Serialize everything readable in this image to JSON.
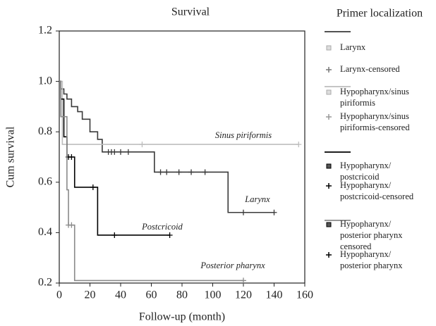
{
  "chart_data": {
    "type": "survival",
    "title": "Survival",
    "legend_title": "Primer localization",
    "x_label": "Follow-up (month)",
    "y_label": "Cum survival",
    "xlim": [
      0,
      160
    ],
    "ylim": [
      0.2,
      1.2
    ],
    "xticks": [
      0,
      20,
      40,
      60,
      80,
      100,
      120,
      140,
      160
    ],
    "yticks": [
      0.2,
      0.4,
      0.6,
      0.8,
      1.0,
      1.2
    ],
    "series": [
      {
        "name": "Larynx",
        "color": "#3a3a3a",
        "x": [
          0,
          1,
          3,
          5,
          8,
          12,
          15,
          20,
          25,
          28,
          62,
          110,
          140
        ],
        "values": [
          1.0,
          0.97,
          0.95,
          0.93,
          0.9,
          0.88,
          0.85,
          0.8,
          0.77,
          0.72,
          0.64,
          0.48,
          0.48
        ],
        "censored_x": [
          32,
          34,
          36,
          40,
          45,
          66,
          70,
          78,
          86,
          95,
          120,
          140
        ],
        "censored_values": [
          0.72,
          0.72,
          0.72,
          0.72,
          0.72,
          0.64,
          0.64,
          0.64,
          0.64,
          0.64,
          0.48,
          0.48
        ]
      },
      {
        "name": "Sinus piriformis",
        "color": "#bdbdbd",
        "x": [
          0,
          2,
          156
        ],
        "values": [
          1.0,
          0.75,
          0.75
        ],
        "censored_x": [
          54,
          156
        ],
        "censored_values": [
          0.75,
          0.75
        ]
      },
      {
        "name": "Postcricoid",
        "color": "#000000",
        "x": [
          0,
          1,
          3,
          5,
          10,
          25,
          72
        ],
        "values": [
          1.0,
          0.93,
          0.78,
          0.7,
          0.58,
          0.39,
          0.39
        ],
        "censored_x": [
          6,
          8,
          22,
          36,
          72
        ],
        "censored_values": [
          0.7,
          0.7,
          0.58,
          0.39,
          0.39
        ]
      },
      {
        "name": "Posterior pharynx",
        "color": "#8a8a8a",
        "x": [
          0,
          1,
          5,
          6,
          10,
          120
        ],
        "values": [
          1.0,
          0.86,
          0.57,
          0.43,
          0.21,
          0.21
        ],
        "censored_x": [
          6,
          8,
          120
        ],
        "censored_values": [
          0.43,
          0.43,
          0.21
        ]
      }
    ],
    "legend": [
      [
        "Larynx"
      ],
      [
        "Larynx-censored"
      ],
      [
        "Hypopharynx/sinus",
        "piriformis"
      ],
      [
        "Hypopharynx/sinus",
        "piriformis-censored"
      ],
      [
        "Hypopharynx/",
        "postcricoid"
      ],
      [
        "Hypopharynx/",
        "postcricoid-censored"
      ],
      [
        "Hypopharynx/",
        "posterior pharynx",
        "censored"
      ],
      [
        "Hypopharynx/",
        "posterior pharynx"
      ]
    ]
  }
}
